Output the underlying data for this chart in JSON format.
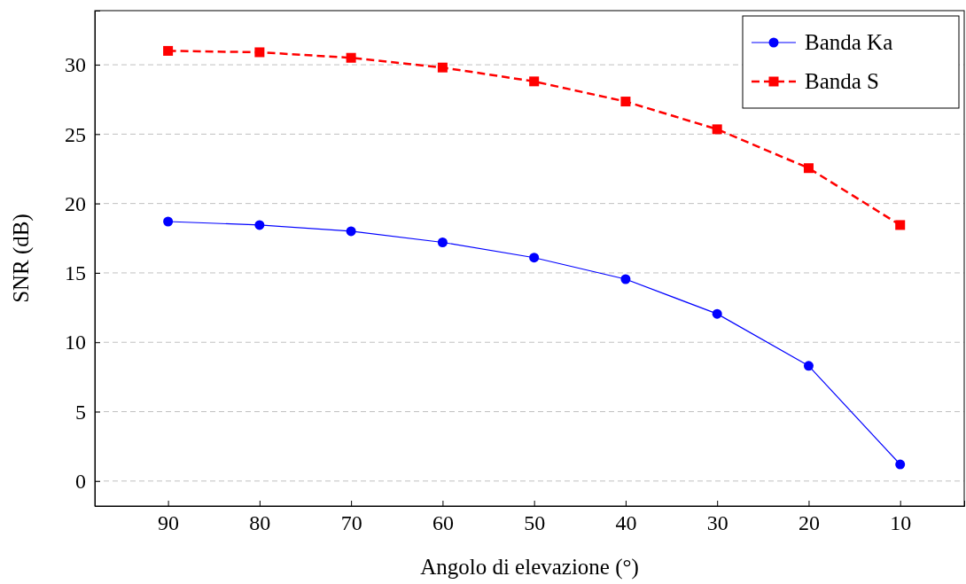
{
  "chart_data": {
    "type": "line",
    "xlabel": "Angolo di elevazione (°)",
    "ylabel": "SNR (dB)",
    "x": [
      90,
      80,
      70,
      60,
      50,
      40,
      30,
      20,
      10
    ],
    "xlim": [
      98,
      3
    ],
    "xticks": [
      90,
      80,
      70,
      60,
      50,
      40,
      30,
      20,
      10
    ],
    "ylim": [
      -1.8,
      33.9
    ],
    "yticks": [
      0,
      5,
      10,
      15,
      20,
      25,
      30
    ],
    "grid": "y",
    "legend": "top right",
    "series": [
      {
        "name": "Banda Ka",
        "color": "#0000ff",
        "marker": "circle",
        "line_style": "solid",
        "values": [
          18.7,
          18.45,
          18.0,
          17.2,
          16.1,
          14.55,
          12.05,
          8.3,
          1.2
        ]
      },
      {
        "name": "Banda S",
        "color": "#ff0000",
        "marker": "square",
        "line_style": "dashed",
        "values": [
          31.0,
          30.9,
          30.5,
          29.8,
          28.8,
          27.35,
          25.35,
          22.55,
          18.45
        ]
      }
    ]
  }
}
